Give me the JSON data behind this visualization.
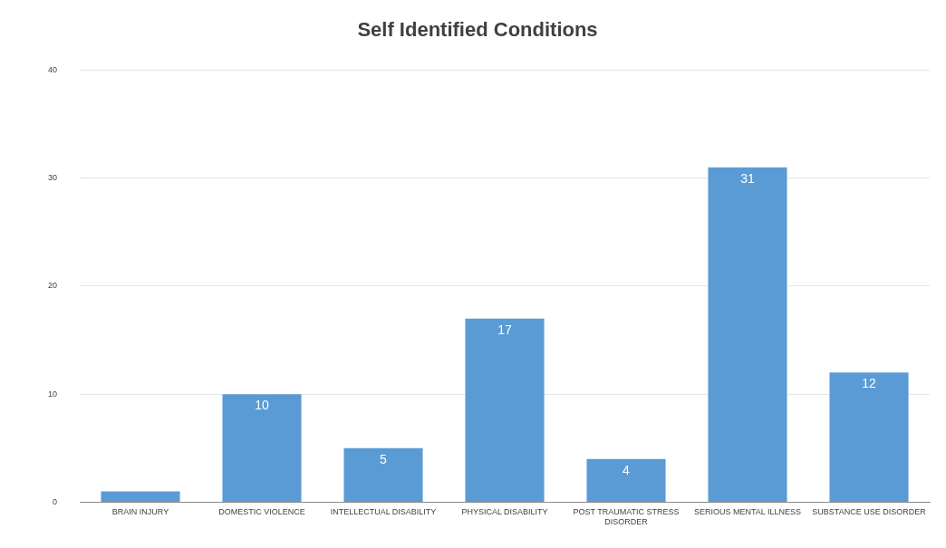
{
  "chart_data": {
    "type": "bar",
    "title": "Self Identified Conditions",
    "categories": [
      "BRAIN INJURY",
      "DOMESTIC VIOLENCE",
      "INTELLECTUAL DISABILITY",
      "PHYSICAL DISABILITY",
      "POST TRAUMATIC STRESS DISORDER",
      "SERIOUS MENTAL ILLNESS",
      "SUBSTANCE USE DISORDER"
    ],
    "values": [
      1,
      10,
      5,
      17,
      4,
      31,
      12
    ],
    "value_labels": [
      null,
      "10",
      "5",
      "17",
      "4",
      "31",
      "12"
    ],
    "color": "#5b9bd5",
    "ylim": [
      0,
      40
    ],
    "yticks": [
      0,
      10,
      20,
      30,
      40
    ],
    "grid": "y",
    "legend": false
  }
}
